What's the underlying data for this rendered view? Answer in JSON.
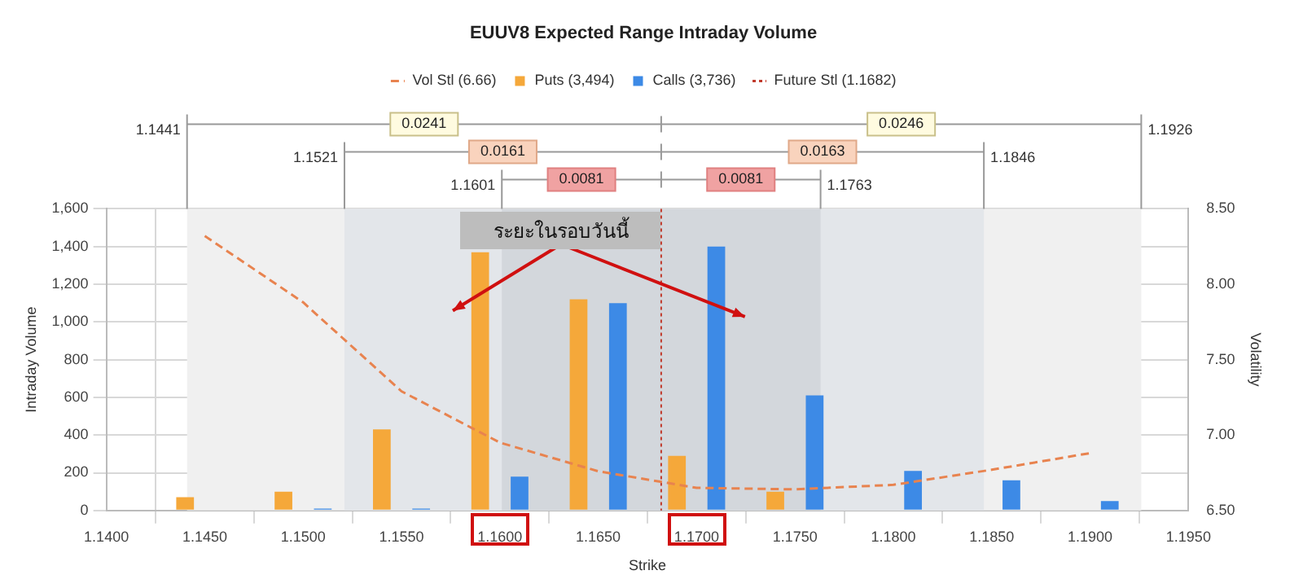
{
  "chart_data": {
    "type": "bar",
    "title": "EUUV8 Expected Range Intraday Volume",
    "xlabel": "Strike",
    "ylabel": "Intraday Volume",
    "y2label": "Volatility",
    "x": [
      1.145,
      1.15,
      1.155,
      1.16,
      1.165,
      1.17,
      1.175,
      1.18,
      1.185,
      1.19
    ],
    "series": [
      {
        "name": "Puts (3,494)",
        "color": "#f5a83a",
        "values": [
          70,
          100,
          430,
          1370,
          1120,
          290,
          100,
          null,
          null,
          null
        ]
      },
      {
        "name": "Calls (3,736)",
        "color": "#3d8ae6",
        "values": [
          null,
          10,
          10,
          180,
          1100,
          1400,
          610,
          210,
          160,
          50
        ]
      },
      {
        "name": "Vol Stl (6.66)",
        "type": "line",
        "axis": "y2",
        "color": "#e8834f",
        "line_style": "dashed",
        "marker": "none",
        "values": [
          8.32,
          7.88,
          7.29,
          6.95,
          6.76,
          6.65,
          6.64,
          6.67,
          6.77,
          6.88
        ]
      }
    ],
    "xlim": [
      1.14,
      1.195
    ],
    "xticks": [
      {
        "value": 1.14,
        "label": "1.1400"
      },
      {
        "value": 1.145,
        "label": "1.1450"
      },
      {
        "value": 1.15,
        "label": "1.1500"
      },
      {
        "value": 1.155,
        "label": "1.1550"
      },
      {
        "value": 1.16,
        "label": "1.1600"
      },
      {
        "value": 1.165,
        "label": "1.1650"
      },
      {
        "value": 1.17,
        "label": "1.1700"
      },
      {
        "value": 1.175,
        "label": "1.1750"
      },
      {
        "value": 1.18,
        "label": "1.1800"
      },
      {
        "value": 1.185,
        "label": "1.1850"
      },
      {
        "value": 1.19,
        "label": "1.1900"
      },
      {
        "value": 1.195,
        "label": "1.1950"
      }
    ],
    "ylim": [
      0,
      1600
    ],
    "yticks": [
      0,
      200,
      400,
      600,
      800,
      {
        "value": 1000,
        "label": "1,000"
      },
      {
        "value": 1200,
        "label": "1,200"
      },
      {
        "value": 1400,
        "label": "1,400"
      },
      {
        "value": 1600,
        "label": "1,600"
      }
    ],
    "y2lim": [
      6.5,
      8.5
    ],
    "y2ticks": [
      {
        "value": 6.5,
        "label": "6.50"
      },
      {
        "value": 7,
        "label": "7.00"
      },
      {
        "value": 7.5,
        "label": "7.50"
      },
      {
        "value": 8,
        "label": "8.00"
      },
      {
        "value": 8.5,
        "label": "8.50"
      }
    ],
    "ref_lines": [
      {
        "axis": "x",
        "value": 1.1682,
        "label": "Future Stl (1.1682)",
        "color": "#c0392b",
        "line_style": "dotted"
      }
    ],
    "bands": [
      {
        "axis": "x",
        "from": 1.1441,
        "to": 1.1926,
        "color": "#f0f0f0"
      },
      {
        "axis": "x",
        "from": 1.1521,
        "to": 1.1846,
        "color": "#e3e6ea"
      },
      {
        "axis": "x",
        "from": 1.1601,
        "to": 1.1763,
        "color": "#d3d7dc"
      }
    ],
    "annotations": [
      "1.1441",
      "0.0241",
      "0.0246",
      "1.1926",
      "1.1521",
      "0.0161",
      "0.0163",
      "1.1846",
      "1.1601",
      "0.0081",
      "0.0081",
      "1.1763",
      "ระยะในรอบวันนี้"
    ],
    "grid": true,
    "legend": "top"
  }
}
